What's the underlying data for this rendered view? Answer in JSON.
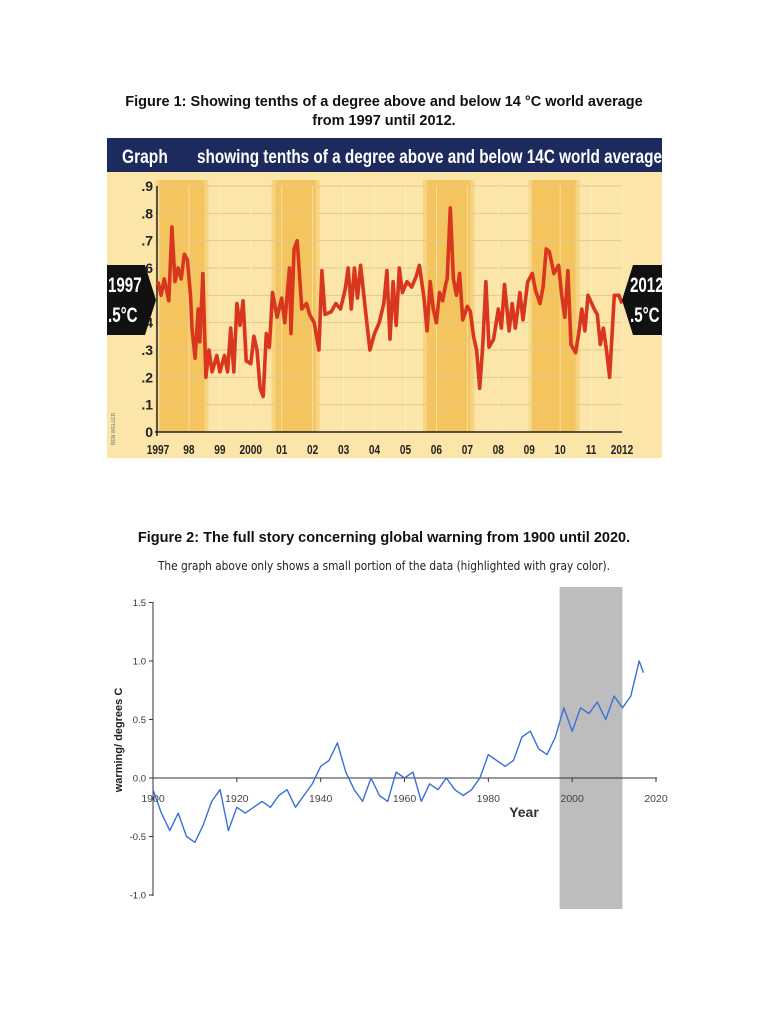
{
  "figure1": {
    "caption_line1": "Figure 1: Showing tenths of a degree above and below 14 °C world average",
    "caption_line2": "from 1997 until 2012."
  },
  "figure2": {
    "caption": "Figure 2: The full story concerning global warning from 1900 until 2020.",
    "subcaption": "The graph above only shows a small portion of the data (highlighted with gray color)."
  },
  "chart_data": [
    {
      "type": "line",
      "header_word": "Graph",
      "title": "showing tenths of a degree above and below 14C world average",
      "credit": "BEN WELLER",
      "left_marker": {
        "year": "1997",
        "value": ".5°C"
      },
      "right_marker": {
        "year": "2012",
        "value": ".5°C"
      },
      "ylim": [
        0,
        0.9
      ],
      "xlim": [
        1997,
        2012
      ],
      "y_tick_labels": [
        "0",
        ".1",
        ".2",
        ".3",
        ".4",
        ".5",
        ".6",
        ".7",
        ".8",
        ".9"
      ],
      "x_tick_labels": [
        "1997",
        "98",
        "99",
        "2000",
        "01",
        "02",
        "03",
        "04",
        "05",
        "06",
        "07",
        "08",
        "09",
        "10",
        "11",
        "2012"
      ],
      "highlight_bands": [
        [
          1997.05,
          1998.5
        ],
        [
          2000.8,
          2002.1
        ],
        [
          2005.7,
          2007.1
        ],
        [
          2009.1,
          2010.5
        ]
      ],
      "colors": {
        "line": "#d9361f",
        "background": "#fbe5a8",
        "band": "#f2bf55",
        "header": "#1d2a5e"
      },
      "grid": true,
      "x": [
        1997.0,
        1997.1,
        1997.2,
        1997.35,
        1997.45,
        1997.55,
        1997.65,
        1997.75,
        1997.85,
        1997.95,
        1998.05,
        1998.1,
        1998.2,
        1998.3,
        1998.35,
        1998.45,
        1998.55,
        1998.65,
        1998.75,
        1998.9,
        1999.0,
        1999.15,
        1999.25,
        1999.35,
        1999.45,
        1999.55,
        1999.65,
        1999.75,
        1999.85,
        2000.0,
        2000.1,
        2000.2,
        2000.3,
        2000.4,
        2000.5,
        2000.6,
        2000.7,
        2000.85,
        2001.0,
        2001.1,
        2001.25,
        2001.3,
        2001.4,
        2001.5,
        2001.65,
        2001.8,
        2001.9,
        2002.05,
        2002.2,
        2002.3,
        2002.4,
        2002.6,
        2002.75,
        2002.9,
        2003.05,
        2003.15,
        2003.25,
        2003.35,
        2003.45,
        2003.55,
        2003.7,
        2003.85,
        2004.0,
        2004.15,
        2004.3,
        2004.4,
        2004.5,
        2004.6,
        2004.7,
        2004.8,
        2004.9,
        2005.05,
        2005.2,
        2005.35,
        2005.45,
        2005.6,
        2005.7,
        2005.8,
        2005.9,
        2006.0,
        2006.1,
        2006.2,
        2006.3,
        2006.35,
        2006.45,
        2006.55,
        2006.65,
        2006.75,
        2006.85,
        2007.0,
        2007.1,
        2007.2,
        2007.3,
        2007.4,
        2007.5,
        2007.6,
        2007.7,
        2007.85,
        2008.0,
        2008.1,
        2008.2,
        2008.35,
        2008.45,
        2008.55,
        2008.7,
        2008.8,
        2008.95,
        2009.1,
        2009.2,
        2009.35,
        2009.45,
        2009.55,
        2009.65,
        2009.8,
        2009.95,
        2010.05,
        2010.15,
        2010.25,
        2010.35,
        2010.5,
        2010.6,
        2010.7,
        2010.8,
        2010.9,
        2011.1,
        2011.2,
        2011.3,
        2011.4,
        2011.5,
        2011.6,
        2011.75,
        2011.9,
        2012.0
      ],
      "y": [
        0.55,
        0.5,
        0.56,
        0.48,
        0.75,
        0.55,
        0.6,
        0.56,
        0.65,
        0.63,
        0.5,
        0.38,
        0.27,
        0.45,
        0.33,
        0.58,
        0.2,
        0.3,
        0.22,
        0.28,
        0.22,
        0.28,
        0.22,
        0.38,
        0.22,
        0.47,
        0.39,
        0.48,
        0.26,
        0.25,
        0.35,
        0.3,
        0.16,
        0.13,
        0.36,
        0.31,
        0.51,
        0.42,
        0.49,
        0.4,
        0.6,
        0.36,
        0.67,
        0.7,
        0.45,
        0.47,
        0.43,
        0.4,
        0.3,
        0.59,
        0.43,
        0.44,
        0.47,
        0.45,
        0.52,
        0.6,
        0.45,
        0.6,
        0.49,
        0.61,
        0.45,
        0.3,
        0.36,
        0.4,
        0.47,
        0.59,
        0.34,
        0.55,
        0.39,
        0.6,
        0.51,
        0.55,
        0.53,
        0.57,
        0.61,
        0.49,
        0.37,
        0.55,
        0.45,
        0.4,
        0.51,
        0.48,
        0.54,
        0.56,
        0.82,
        0.56,
        0.5,
        0.58,
        0.41,
        0.46,
        0.44,
        0.35,
        0.3,
        0.16,
        0.32,
        0.55,
        0.31,
        0.34,
        0.45,
        0.38,
        0.54,
        0.37,
        0.47,
        0.38,
        0.51,
        0.41,
        0.55,
        0.58,
        0.52,
        0.47,
        0.53,
        0.67,
        0.66,
        0.58,
        0.61,
        0.5,
        0.42,
        0.59,
        0.32,
        0.29,
        0.36,
        0.45,
        0.37,
        0.5,
        0.45,
        0.43,
        0.32,
        0.38,
        0.3,
        0.2,
        0.5,
        0.5,
        0.47
      ]
    },
    {
      "type": "line",
      "xlabel": "Year",
      "ylabel": "warming/ degrees C",
      "xlim": [
        1900,
        2020
      ],
      "ylim": [
        -1.0,
        1.5
      ],
      "x_tick_labels": [
        "1900",
        "1920",
        "1940",
        "1960",
        "1980",
        "2000",
        "2020"
      ],
      "y_tick_labels": [
        "-1.0",
        "-0.5",
        "0.0",
        "0.5",
        "1.0",
        "1.5"
      ],
      "highlight_band": [
        1997,
        2012
      ],
      "colors": {
        "line": "#3a6fd8",
        "band": "#bdbdbd",
        "axis": "#333333"
      },
      "grid": false,
      "x": [
        1900,
        1902,
        1904,
        1906,
        1908,
        1910,
        1912,
        1914,
        1916,
        1918,
        1920,
        1922,
        1924,
        1926,
        1928,
        1930,
        1932,
        1934,
        1936,
        1938,
        1940,
        1942,
        1944,
        1946,
        1948,
        1950,
        1952,
        1954,
        1956,
        1958,
        1960,
        1962,
        1964,
        1966,
        1968,
        1970,
        1972,
        1974,
        1976,
        1978,
        1980,
        1982,
        1984,
        1986,
        1988,
        1990,
        1992,
        1994,
        1996,
        1998,
        2000,
        2002,
        2004,
        2006,
        2008,
        2010,
        2012,
        2014,
        2016,
        2017
      ],
      "y": [
        -0.1,
        -0.3,
        -0.45,
        -0.3,
        -0.5,
        -0.55,
        -0.4,
        -0.2,
        -0.1,
        -0.45,
        -0.25,
        -0.3,
        -0.25,
        -0.2,
        -0.25,
        -0.15,
        -0.1,
        -0.25,
        -0.15,
        -0.05,
        0.1,
        0.15,
        0.3,
        0.05,
        -0.1,
        -0.2,
        0.0,
        -0.15,
        -0.2,
        0.05,
        0.0,
        0.05,
        -0.2,
        -0.05,
        -0.1,
        0.0,
        -0.1,
        -0.15,
        -0.1,
        0.0,
        0.2,
        0.15,
        0.1,
        0.15,
        0.35,
        0.4,
        0.25,
        0.2,
        0.35,
        0.6,
        0.4,
        0.6,
        0.55,
        0.65,
        0.5,
        0.7,
        0.6,
        0.7,
        1.0,
        0.9
      ]
    }
  ]
}
